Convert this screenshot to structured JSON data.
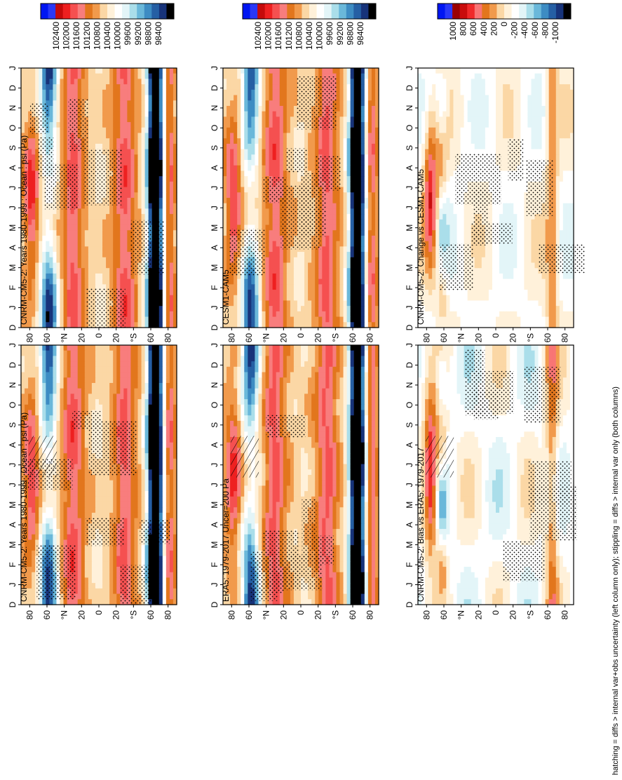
{
  "footnote": "hatching = diffs > internal var+obs uncertainty (left column only); stippling = diffs > internal var only (both columns)",
  "scales": {
    "abs": {
      "labels": [
        "102400",
        "102000",
        "101600",
        "101200",
        "100800",
        "100400",
        "100000",
        "99600",
        "99200",
        "98800",
        "98400"
      ],
      "colors": [
        "#0016f2",
        "#2a38f7",
        "#c50a0a",
        "#ee2020",
        "#f55050",
        "#f87d7d",
        "#e2761d",
        "#f19a4c",
        "#fbd7a5",
        "#fff1da",
        "#ffffff",
        "#e3f5f8",
        "#aadeea",
        "#6ab8da",
        "#3d8cc3",
        "#255fa4",
        "#17337a",
        "#000000"
      ]
    },
    "diff": {
      "labels": [
        "1000",
        "800",
        "600",
        "400",
        "200",
        "0",
        "-200",
        "-400",
        "-600",
        "-800",
        "-1000"
      ],
      "colors": [
        "#0016f2",
        "#2a38f7",
        "#9a0000",
        "#c90d0d",
        "#ef2a2a",
        "#f87575",
        "#e2761d",
        "#f19a4c",
        "#fbd7a5",
        "#fff1da",
        "#ffffff",
        "#e3f5f8",
        "#aadeea",
        "#6ab8da",
        "#3d8cc3",
        "#255fa4",
        "#17337a",
        "#000000"
      ]
    }
  },
  "chart_data": [
    {
      "type": "heatmap",
      "title": "CNRM-CM5-2: Years 1980-1999 : Ocean : psl (Pa)",
      "scale": "abs",
      "field": "abs",
      "seed": 1,
      "hatch": true,
      "x_ticks": [
        "D",
        "J",
        "F",
        "M",
        "A",
        "M",
        "J",
        "J",
        "A",
        "S",
        "O",
        "N",
        "D",
        "J"
      ],
      "y_ticks": [
        "80",
        "60",
        "°N",
        "20",
        "0",
        "20",
        "°S",
        "60",
        "80"
      ],
      "ylim": [
        -90,
        90
      ]
    },
    {
      "type": "heatmap",
      "title": "CNRM-CM5-2: Years 1980-1999 : Ocean : psl (Pa)",
      "scale": "abs",
      "field": "abs",
      "seed": 2,
      "hatch": false,
      "x_ticks": [
        "D",
        "J",
        "F",
        "M",
        "A",
        "M",
        "J",
        "J",
        "A",
        "S",
        "O",
        "N",
        "D",
        "J"
      ],
      "y_ticks": [
        "80",
        "60",
        "°N",
        "20",
        "0",
        "20",
        "°S",
        "60",
        "80"
      ],
      "ylim": [
        -90,
        90
      ]
    },
    {
      "type": "heatmap",
      "title": "ERA5: 1979-2017 Uncer=200 Pa",
      "scale": "abs",
      "field": "abs",
      "seed": 3,
      "hatch": true,
      "x_ticks": [
        "D",
        "J",
        "F",
        "M",
        "A",
        "M",
        "J",
        "J",
        "A",
        "S",
        "O",
        "N",
        "D",
        "J"
      ],
      "y_ticks": [
        "80",
        "60",
        "°N",
        "20",
        "0",
        "20",
        "°S",
        "60",
        "80"
      ],
      "ylim": [
        -90,
        90
      ]
    },
    {
      "type": "heatmap",
      "title": "CESM1-CAM5",
      "scale": "abs",
      "field": "abs",
      "seed": 4,
      "hatch": false,
      "x_ticks": [
        "D",
        "J",
        "F",
        "M",
        "A",
        "M",
        "J",
        "J",
        "A",
        "S",
        "O",
        "N",
        "D",
        "J"
      ],
      "y_ticks": [
        "80",
        "60",
        "°N",
        "20",
        "0",
        "20",
        "°S",
        "60",
        "80"
      ],
      "ylim": [
        -90,
        90
      ]
    },
    {
      "type": "heatmap",
      "title": "CNRM-CM5-2: Bias vs ERA5: 1979-2017",
      "scale": "diff",
      "field": "bias",
      "seed": 5,
      "hatch": true,
      "x_ticks": [
        "D",
        "J",
        "F",
        "M",
        "A",
        "M",
        "J",
        "J",
        "A",
        "S",
        "O",
        "N",
        "D",
        "J"
      ],
      "y_ticks": [
        "80",
        "60",
        "°N",
        "20",
        "0",
        "20",
        "°S",
        "60",
        "80"
      ],
      "ylim": [
        -90,
        90
      ]
    },
    {
      "type": "heatmap",
      "title": "CNRM-CM5-2: Change vs CESM1-CAM5",
      "scale": "diff",
      "field": "change",
      "seed": 6,
      "hatch": false,
      "x_ticks": [
        "D",
        "J",
        "F",
        "M",
        "A",
        "M",
        "J",
        "J",
        "A",
        "S",
        "O",
        "N",
        "D",
        "J"
      ],
      "y_ticks": [
        "80",
        "60",
        "°N",
        "20",
        "0",
        "20",
        "°S",
        "60",
        "80"
      ],
      "ylim": [
        -90,
        90
      ]
    }
  ]
}
